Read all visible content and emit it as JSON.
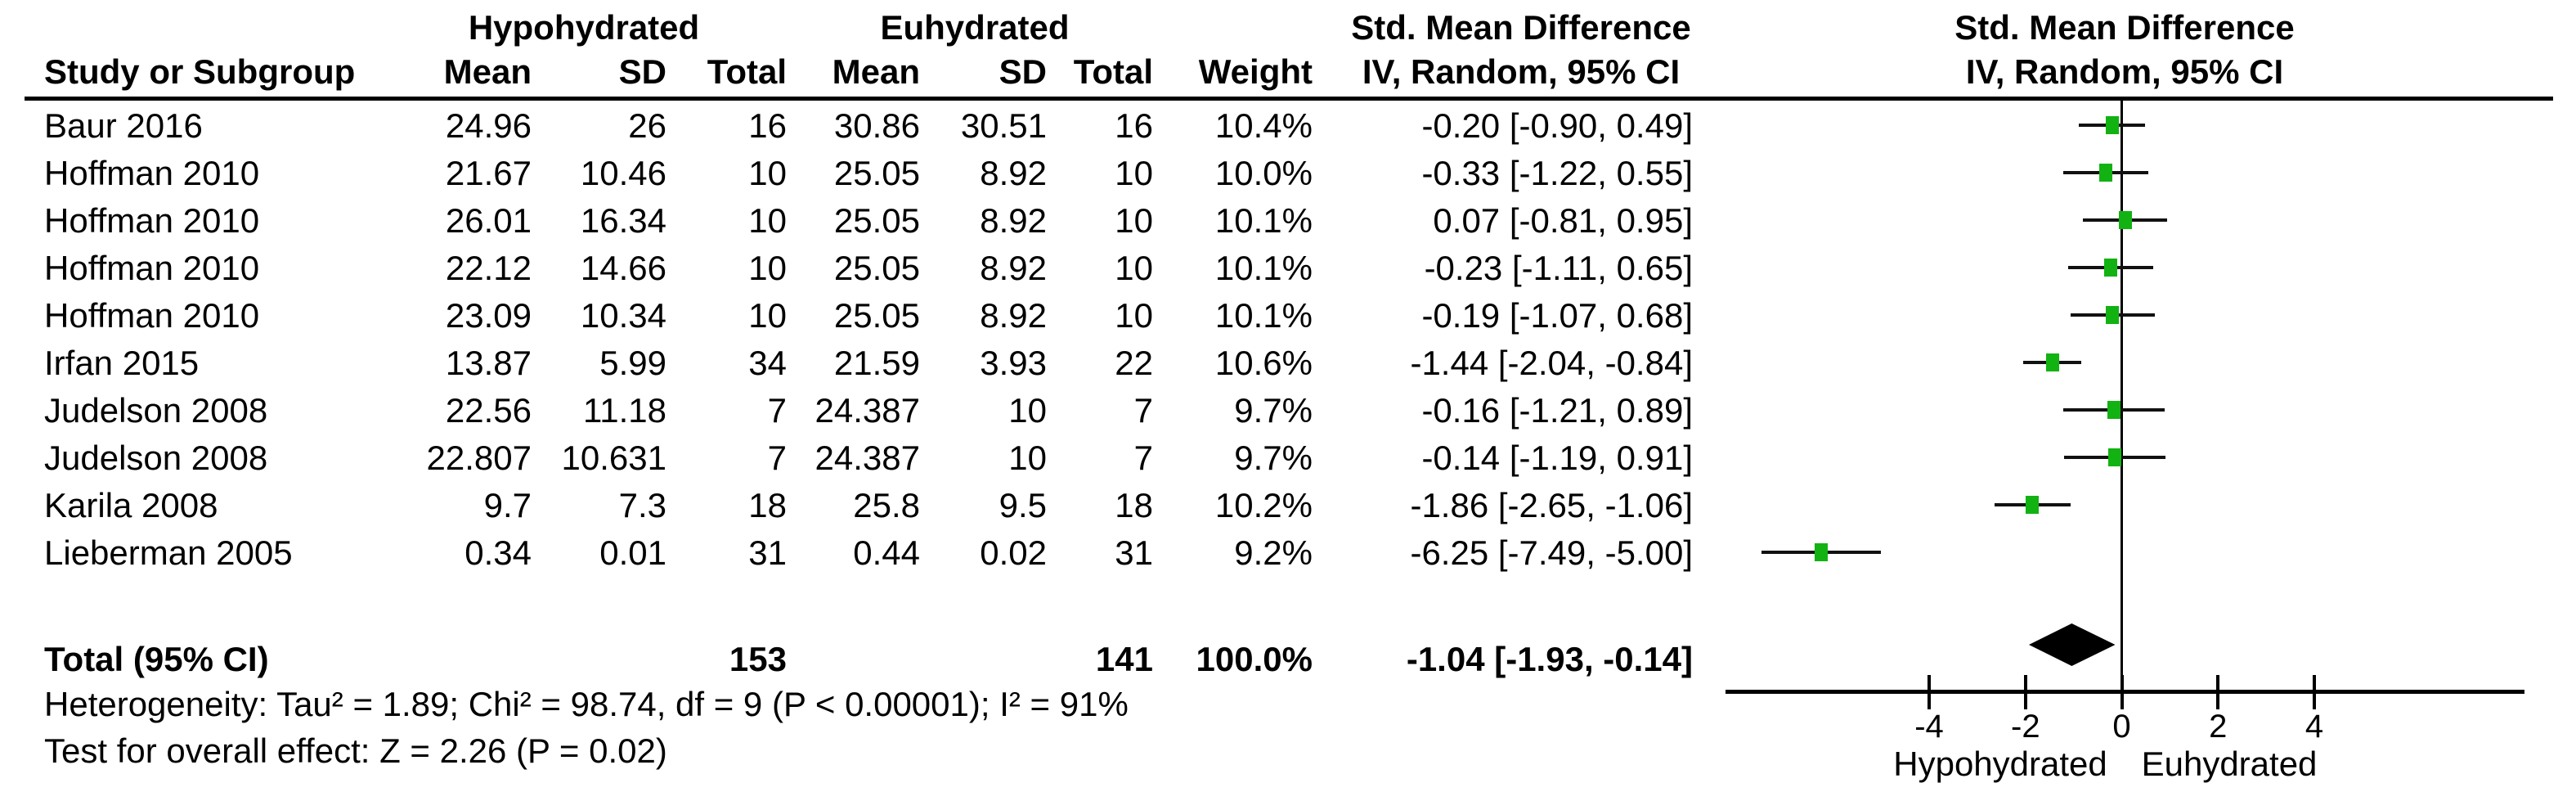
{
  "header": {
    "group1": "Hypohydrated",
    "group2": "Euhydrated",
    "study": "Study or Subgroup",
    "mean": "Mean",
    "sd": "SD",
    "total": "Total",
    "weight": "Weight",
    "smd_title": "Std. Mean Difference",
    "smd_sub": "IV, Random, 95% CI",
    "plot_title": "Std. Mean Difference",
    "plot_sub": "IV, Random, 95% CI"
  },
  "chart_data": {
    "type": "forest",
    "effect_measure": "Std. Mean Difference",
    "model": "IV, Random, 95% CI",
    "studies": [
      {
        "name": "Baur 2016",
        "h_mean": "24.96",
        "h_sd": "26",
        "h_total": "16",
        "e_mean": "30.86",
        "e_sd": "30.51",
        "e_total": "16",
        "weight": "10.4%",
        "ci_text": "-0.20 [-0.90, 0.49]",
        "smd": -0.2,
        "lo": -0.9,
        "hi": 0.49
      },
      {
        "name": "Hoffman 2010",
        "h_mean": "21.67",
        "h_sd": "10.46",
        "h_total": "10",
        "e_mean": "25.05",
        "e_sd": "8.92",
        "e_total": "10",
        "weight": "10.0%",
        "ci_text": "-0.33 [-1.22, 0.55]",
        "smd": -0.33,
        "lo": -1.22,
        "hi": 0.55
      },
      {
        "name": "Hoffman 2010",
        "h_mean": "26.01",
        "h_sd": "16.34",
        "h_total": "10",
        "e_mean": "25.05",
        "e_sd": "8.92",
        "e_total": "10",
        "weight": "10.1%",
        "ci_text": "0.07 [-0.81, 0.95]",
        "smd": 0.07,
        "lo": -0.81,
        "hi": 0.95
      },
      {
        "name": "Hoffman 2010",
        "h_mean": "22.12",
        "h_sd": "14.66",
        "h_total": "10",
        "e_mean": "25.05",
        "e_sd": "8.92",
        "e_total": "10",
        "weight": "10.1%",
        "ci_text": "-0.23 [-1.11, 0.65]",
        "smd": -0.23,
        "lo": -1.11,
        "hi": 0.65
      },
      {
        "name": "Hoffman 2010",
        "h_mean": "23.09",
        "h_sd": "10.34",
        "h_total": "10",
        "e_mean": "25.05",
        "e_sd": "8.92",
        "e_total": "10",
        "weight": "10.1%",
        "ci_text": "-0.19 [-1.07, 0.68]",
        "smd": -0.19,
        "lo": -1.07,
        "hi": 0.68
      },
      {
        "name": "Irfan 2015",
        "h_mean": "13.87",
        "h_sd": "5.99",
        "h_total": "34",
        "e_mean": "21.59",
        "e_sd": "3.93",
        "e_total": "22",
        "weight": "10.6%",
        "ci_text": "-1.44 [-2.04, -0.84]",
        "smd": -1.44,
        "lo": -2.04,
        "hi": -0.84
      },
      {
        "name": "Judelson 2008",
        "h_mean": "22.56",
        "h_sd": "11.18",
        "h_total": "7",
        "e_mean": "24.387",
        "e_sd": "10",
        "e_total": "7",
        "weight": "9.7%",
        "ci_text": "-0.16 [-1.21, 0.89]",
        "smd": -0.16,
        "lo": -1.21,
        "hi": 0.89
      },
      {
        "name": "Judelson 2008",
        "h_mean": "22.807",
        "h_sd": "10.631",
        "h_total": "7",
        "e_mean": "24.387",
        "e_sd": "10",
        "e_total": "7",
        "weight": "9.7%",
        "ci_text": "-0.14 [-1.19, 0.91]",
        "smd": -0.14,
        "lo": -1.19,
        "hi": 0.91
      },
      {
        "name": "Karila 2008",
        "h_mean": "9.7",
        "h_sd": "7.3",
        "h_total": "18",
        "e_mean": "25.8",
        "e_sd": "9.5",
        "e_total": "18",
        "weight": "10.2%",
        "ci_text": "-1.86 [-2.65, -1.06]",
        "smd": -1.86,
        "lo": -2.65,
        "hi": -1.06
      },
      {
        "name": "Lieberman 2005",
        "h_mean": "0.34",
        "h_sd": "0.01",
        "h_total": "31",
        "e_mean": "0.44",
        "e_sd": "0.02",
        "e_total": "31",
        "weight": "9.2%",
        "ci_text": "-6.25 [-7.49, -5.00]",
        "smd": -6.25,
        "lo": -7.49,
        "hi": -5.0
      }
    ],
    "total": {
      "label": "Total (95% CI)",
      "h_total": "153",
      "e_total": "141",
      "weight": "100.0%",
      "ci_text": "-1.04 [-1.93, -0.14]",
      "smd": -1.04,
      "lo": -1.93,
      "hi": -0.14
    },
    "heterogeneity": "Heterogeneity: Tau² = 1.89; Chi² = 98.74, df = 9 (P < 0.00001); I² = 91%",
    "overall_effect": "Test for overall effect: Z = 2.26 (P = 0.02)",
    "axis": {
      "ticks": [
        "-4",
        "-2",
        "0",
        "2",
        "4"
      ],
      "tick_values": [
        -4,
        -2,
        0,
        2,
        4
      ],
      "min_label": -4,
      "max_label": 4,
      "left_label": "Hypohydrated",
      "right_label": "Euhydrated",
      "grid": false
    },
    "colors": {
      "marker_green": "#12b212",
      "diamond_black": "#000000",
      "line_black": "#000000"
    }
  }
}
